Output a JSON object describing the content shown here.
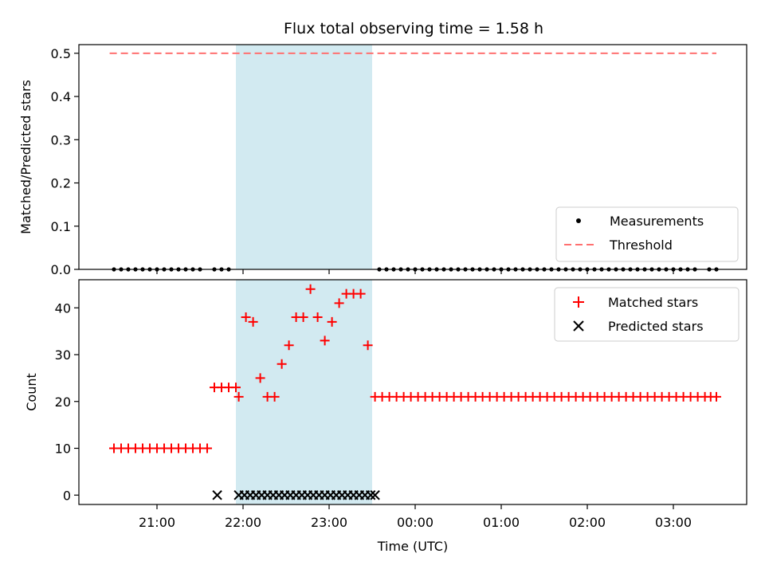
{
  "chart_data": [
    {
      "type": "scatter",
      "title": "Flux total observing time = 1.58 h",
      "xlabel": "",
      "ylabel": "Matched/Predicted stars",
      "ylim": [
        0,
        0.52
      ],
      "yticks": [
        "0.0",
        "0.1",
        "0.2",
        "0.3",
        "0.4",
        "0.5"
      ],
      "highlight_span": [
        "21:55",
        "23:30"
      ],
      "highlight_color": "#add8e6",
      "legend_position": "bottom-right",
      "threshold": {
        "name": "Threshold",
        "value": 0.5,
        "color": "#ff7070",
        "x_range": [
          "20:27",
          "03:30"
        ]
      },
      "measurements": {
        "name": "Measurements",
        "color": "#000000",
        "value": 0,
        "times": [
          "20:30",
          "20:35",
          "20:40",
          "20:45",
          "20:50",
          "20:55",
          "21:00",
          "21:05",
          "21:10",
          "21:15",
          "21:20",
          "21:25",
          "21:30",
          "21:40",
          "21:45",
          "21:50",
          "23:35",
          "23:40",
          "23:45",
          "23:50",
          "23:55",
          "00:00",
          "00:05",
          "00:10",
          "00:15",
          "00:20",
          "00:25",
          "00:30",
          "00:35",
          "00:40",
          "00:45",
          "00:50",
          "00:55",
          "01:00",
          "01:05",
          "01:10",
          "01:15",
          "01:20",
          "01:25",
          "01:30",
          "01:35",
          "01:40",
          "01:45",
          "01:50",
          "01:55",
          "02:00",
          "02:05",
          "02:10",
          "02:15",
          "02:20",
          "02:25",
          "02:30",
          "02:35",
          "02:40",
          "02:45",
          "02:50",
          "02:55",
          "03:00",
          "03:05",
          "03:10",
          "03:15",
          "03:25",
          "03:30"
        ]
      }
    },
    {
      "type": "scatter",
      "title": "",
      "xlabel": "Time (UTC)",
      "ylabel": "Count",
      "ylim": [
        -2,
        46
      ],
      "yticks": [
        "0",
        "10",
        "20",
        "30",
        "40"
      ],
      "xticks": [
        "21:00",
        "22:00",
        "23:00",
        "00:00",
        "01:00",
        "02:00",
        "03:00"
      ],
      "highlight_span": [
        "21:55",
        "23:30"
      ],
      "highlight_color": "#add8e6",
      "legend_position": "top-right",
      "series": [
        {
          "name": "Matched stars",
          "marker": "plus",
          "color": "#ff0000",
          "points": [
            [
              "20:30",
              10
            ],
            [
              "20:35",
              10
            ],
            [
              "20:40",
              10
            ],
            [
              "20:45",
              10
            ],
            [
              "20:50",
              10
            ],
            [
              "20:55",
              10
            ],
            [
              "21:00",
              10
            ],
            [
              "21:05",
              10
            ],
            [
              "21:10",
              10
            ],
            [
              "21:15",
              10
            ],
            [
              "21:20",
              10
            ],
            [
              "21:25",
              10
            ],
            [
              "21:30",
              10
            ],
            [
              "21:35",
              10
            ],
            [
              "21:40",
              23
            ],
            [
              "21:45",
              23
            ],
            [
              "21:50",
              23
            ],
            [
              "21:55",
              23
            ],
            [
              "21:57",
              21
            ],
            [
              "22:02",
              38
            ],
            [
              "22:07",
              37
            ],
            [
              "22:12",
              25
            ],
            [
              "22:17",
              21
            ],
            [
              "22:22",
              21
            ],
            [
              "22:27",
              28
            ],
            [
              "22:32",
              32
            ],
            [
              "22:37",
              38
            ],
            [
              "22:42",
              38
            ],
            [
              "22:47",
              44
            ],
            [
              "22:52",
              38
            ],
            [
              "22:57",
              33
            ],
            [
              "23:02",
              37
            ],
            [
              "23:07",
              41
            ],
            [
              "23:12",
              43
            ],
            [
              "23:17",
              43
            ],
            [
              "23:22",
              43
            ],
            [
              "23:27",
              32
            ],
            [
              "23:32",
              21
            ],
            [
              "23:37",
              21
            ],
            [
              "23:42",
              21
            ],
            [
              "23:47",
              21
            ],
            [
              "23:52",
              21
            ],
            [
              "23:57",
              21
            ],
            [
              "00:02",
              21
            ],
            [
              "00:07",
              21
            ],
            [
              "00:12",
              21
            ],
            [
              "00:17",
              21
            ],
            [
              "00:22",
              21
            ],
            [
              "00:27",
              21
            ],
            [
              "00:32",
              21
            ],
            [
              "00:37",
              21
            ],
            [
              "00:42",
              21
            ],
            [
              "00:47",
              21
            ],
            [
              "00:52",
              21
            ],
            [
              "00:57",
              21
            ],
            [
              "01:02",
              21
            ],
            [
              "01:07",
              21
            ],
            [
              "01:12",
              21
            ],
            [
              "01:17",
              21
            ],
            [
              "01:22",
              21
            ],
            [
              "01:27",
              21
            ],
            [
              "01:32",
              21
            ],
            [
              "01:37",
              21
            ],
            [
              "01:42",
              21
            ],
            [
              "01:47",
              21
            ],
            [
              "01:52",
              21
            ],
            [
              "01:57",
              21
            ],
            [
              "02:02",
              21
            ],
            [
              "02:07",
              21
            ],
            [
              "02:12",
              21
            ],
            [
              "02:17",
              21
            ],
            [
              "02:22",
              21
            ],
            [
              "02:27",
              21
            ],
            [
              "02:32",
              21
            ],
            [
              "02:37",
              21
            ],
            [
              "02:42",
              21
            ],
            [
              "02:47",
              21
            ],
            [
              "02:52",
              21
            ],
            [
              "02:57",
              21
            ],
            [
              "03:02",
              21
            ],
            [
              "03:07",
              21
            ],
            [
              "03:12",
              21
            ],
            [
              "03:17",
              21
            ],
            [
              "03:22",
              21
            ],
            [
              "03:26",
              21
            ],
            [
              "03:30",
              21
            ]
          ]
        },
        {
          "name": "Predicted stars",
          "marker": "x",
          "color": "#000000",
          "points": [
            [
              "21:42",
              0
            ],
            [
              "21:57",
              0
            ],
            [
              "22:01",
              0
            ],
            [
              "22:05",
              0
            ],
            [
              "22:09",
              0
            ],
            [
              "22:13",
              0
            ],
            [
              "22:17",
              0
            ],
            [
              "22:21",
              0
            ],
            [
              "22:25",
              0
            ],
            [
              "22:29",
              0
            ],
            [
              "22:33",
              0
            ],
            [
              "22:37",
              0
            ],
            [
              "22:41",
              0
            ],
            [
              "22:45",
              0
            ],
            [
              "22:49",
              0
            ],
            [
              "22:53",
              0
            ],
            [
              "22:57",
              0
            ],
            [
              "23:01",
              0
            ],
            [
              "23:05",
              0
            ],
            [
              "23:09",
              0
            ],
            [
              "23:13",
              0
            ],
            [
              "23:17",
              0
            ],
            [
              "23:21",
              0
            ],
            [
              "23:25",
              0
            ],
            [
              "23:29",
              0
            ],
            [
              "23:32",
              0
            ]
          ]
        }
      ]
    }
  ]
}
